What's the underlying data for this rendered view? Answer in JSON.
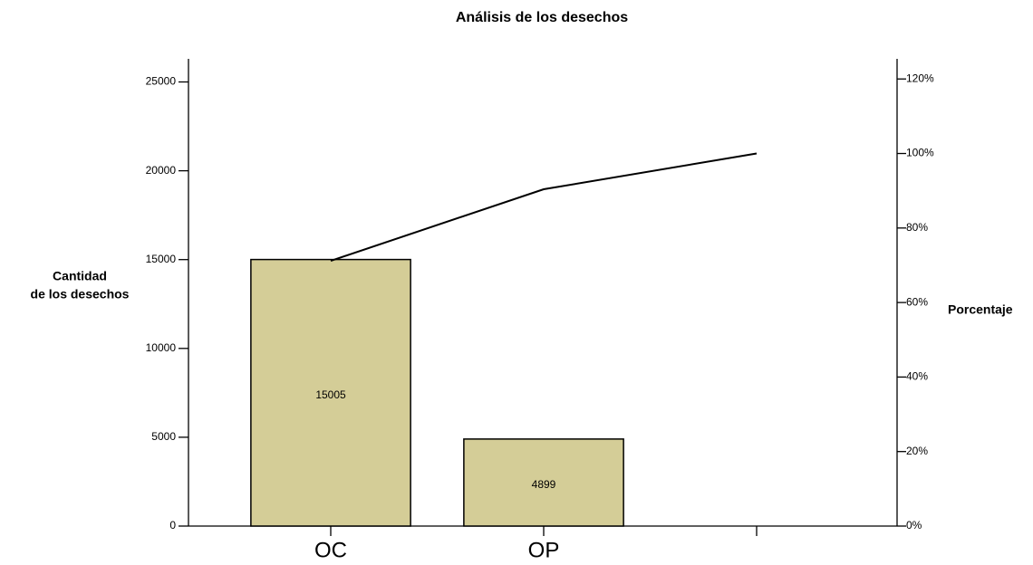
{
  "chart_data": {
    "type": "pareto",
    "title": "Análisis de los desechos",
    "y_label_lines": [
      "Cantidad",
      "de los desechos"
    ],
    "y2_label": "Porcentaje",
    "categories": [
      "OC",
      "OP",
      null
    ],
    "series": [
      {
        "type": "bar",
        "color": "#d4cd97",
        "values": [
          15005,
          4899,
          null
        ]
      },
      {
        "type": "line",
        "axis": "y2",
        "color": "#000000",
        "values": [
          71.2,
          90.4,
          100
        ]
      }
    ],
    "ylim": [
      0,
      26300
    ],
    "yticks": [
      0,
      5000,
      10000,
      15000,
      20000,
      25000
    ],
    "y2lim": [
      0,
      125.4
    ],
    "y2ticks": [
      {
        "value": 0,
        "label": "0%"
      },
      {
        "value": 20,
        "label": "20%"
      },
      {
        "value": 40,
        "label": "40%"
      },
      {
        "value": 60,
        "label": "60%"
      },
      {
        "value": 80,
        "label": "80%"
      },
      {
        "value": 100,
        "label": "100%"
      },
      {
        "value": 120,
        "label": "120%"
      }
    ]
  }
}
